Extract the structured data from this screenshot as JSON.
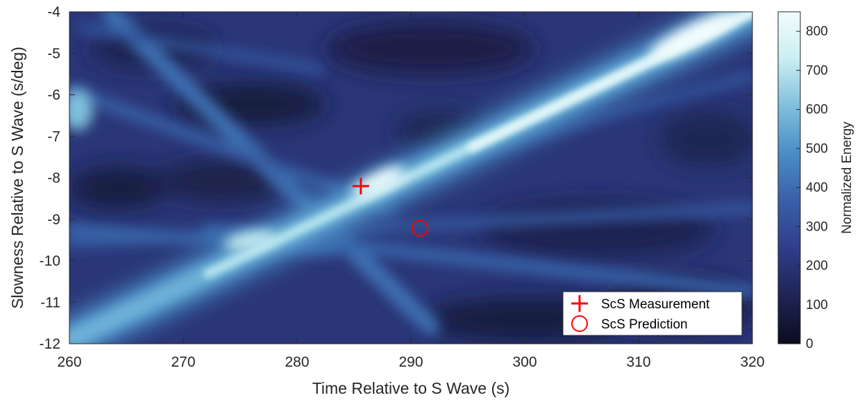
{
  "chart_data": {
    "type": "heatmap",
    "title": "",
    "xlabel": "Time Relative to S Wave (s)",
    "ylabel": "Slowness Relative to S Wave (s/deg)",
    "xlim": [
      260,
      320
    ],
    "ylim": [
      -12,
      -4
    ],
    "xticks": [
      260,
      270,
      280,
      290,
      300,
      310,
      320
    ],
    "yticks": [
      -4,
      -5,
      -6,
      -7,
      -8,
      -9,
      -10,
      -11,
      -12
    ],
    "xtick_labels": [
      "260",
      "270",
      "280",
      "290",
      "300",
      "310",
      "320"
    ],
    "ytick_labels": [
      "-4",
      "-5",
      "-6",
      "-7",
      "-8",
      "-9",
      "-10",
      "-11",
      "-12"
    ],
    "grid": false,
    "colorbar": {
      "label": "Normalized Energy",
      "range": [
        0,
        850
      ],
      "ticks": [
        0,
        100,
        200,
        300,
        400,
        500,
        600,
        700,
        800
      ],
      "tick_labels": [
        "0",
        "100",
        "200",
        "300",
        "400",
        "500",
        "600",
        "700",
        "800"
      ],
      "colormap": [
        "#0b0c1f",
        "#1f2454",
        "#2f3d8a",
        "#3a5fa8",
        "#4a8cc5",
        "#7fbfdc",
        "#c9eef1",
        "#f2fcfc"
      ]
    },
    "ridges": [
      {
        "description_id": "main",
        "from": [
          260,
          -11.9
        ],
        "to": [
          320,
          -4.0
        ],
        "peak": 850,
        "width_s": 2.2
      },
      {
        "description_id": "secondary",
        "from": [
          265,
          -4.0
        ],
        "to": [
          300,
          -10.8
        ],
        "peak": 430,
        "width_s": 2.0
      }
    ],
    "hotspots": [
      {
        "t": 287.5,
        "s": -8.1,
        "value": 820
      },
      {
        "t": 276,
        "s": -9.5,
        "value": 700
      },
      {
        "t": 316,
        "s": -4.3,
        "value": 850
      },
      {
        "t": 260.5,
        "s": -6.3,
        "value": 520
      }
    ],
    "markers": [
      {
        "name": "ScS Measurement",
        "symbol": "plus",
        "t": 285.6,
        "s": -8.2,
        "color": "#ff0000"
      },
      {
        "name": "ScS Prediction",
        "symbol": "circle",
        "t": 290.8,
        "s": -9.22,
        "color": "#ff0000"
      }
    ],
    "legend": {
      "position": "bottom-right",
      "entries": [
        "ScS Measurement",
        "ScS Prediction"
      ]
    }
  }
}
